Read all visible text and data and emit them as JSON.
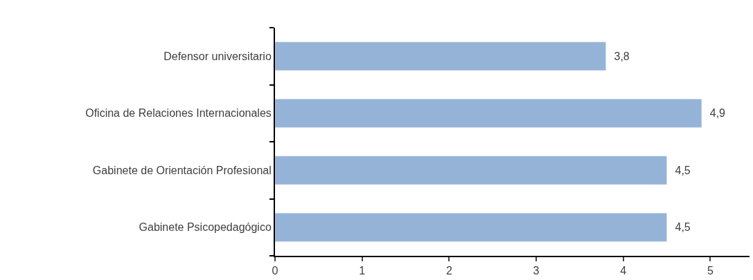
{
  "chart_data": {
    "type": "bar",
    "orientation": "horizontal",
    "categories": [
      "Defensor universitario",
      "Oficina de Relaciones Internacionales",
      "Gabinete de Orientación Profesional",
      "Gabinete Psicopedagógico"
    ],
    "values": [
      3.8,
      4.9,
      4.5,
      4.5
    ],
    "value_labels": [
      "3,8",
      "4,9",
      "4,5",
      "4,5"
    ],
    "color": "#95b3d7",
    "xlim": [
      0,
      5.45
    ],
    "xticks": [
      0,
      1,
      2,
      3,
      4,
      5
    ]
  }
}
